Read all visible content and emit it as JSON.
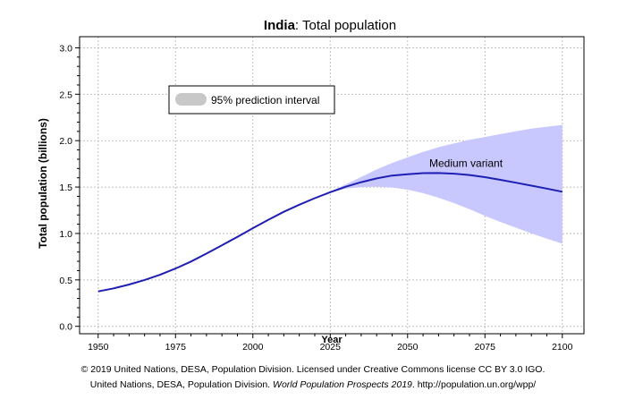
{
  "chart_data": {
    "type": "line",
    "title_bold": "India",
    "title_rest": ": Total population",
    "xlabel": "Year",
    "ylabel": "Total population (billions)",
    "xlim": [
      1944,
      2107
    ],
    "ylim": [
      -0.08,
      3.12
    ],
    "x_ticks": [
      1950,
      1975,
      2000,
      2025,
      2050,
      2075,
      2100
    ],
    "y_ticks": [
      0.0,
      0.5,
      1.0,
      1.5,
      2.0,
      2.5,
      3.0
    ],
    "y_tick_labels": [
      "0.0",
      "0.5",
      "1.0",
      "1.5",
      "2.0",
      "2.5",
      "3.0"
    ],
    "grid": true,
    "legend": {
      "label": "95% prediction interval",
      "placement": "top-left"
    },
    "annotation": {
      "text": "Medium variant",
      "x": 2057,
      "y": 1.72
    },
    "series": [
      {
        "name": "Medium variant",
        "color": "#1f1fb4",
        "x": [
          1950,
          1955,
          1960,
          1965,
          1970,
          1975,
          1980,
          1985,
          1990,
          1995,
          2000,
          2005,
          2010,
          2015,
          2020,
          2025,
          2030,
          2035,
          2040,
          2045,
          2050,
          2055,
          2060,
          2065,
          2070,
          2075,
          2080,
          2085,
          2090,
          2095,
          2100
        ],
        "values": [
          0.376,
          0.409,
          0.45,
          0.499,
          0.555,
          0.623,
          0.698,
          0.784,
          0.873,
          0.964,
          1.057,
          1.148,
          1.234,
          1.31,
          1.38,
          1.445,
          1.504,
          1.553,
          1.593,
          1.624,
          1.639,
          1.65,
          1.651,
          1.644,
          1.63,
          1.607,
          1.578,
          1.547,
          1.515,
          1.483,
          1.45
        ]
      }
    ],
    "interval": {
      "name": "95% prediction interval",
      "color": "#c8c8ff",
      "x": [
        2020,
        2025,
        2030,
        2035,
        2040,
        2045,
        2050,
        2055,
        2060,
        2065,
        2070,
        2075,
        2080,
        2085,
        2090,
        2095,
        2100
      ],
      "lower": [
        1.38,
        1.44,
        1.482,
        1.5,
        1.505,
        1.495,
        1.472,
        1.434,
        1.385,
        1.327,
        1.262,
        1.19,
        1.124,
        1.062,
        1.0,
        0.945,
        0.89
      ],
      "upper": [
        1.38,
        1.45,
        1.53,
        1.61,
        1.69,
        1.76,
        1.82,
        1.88,
        1.93,
        1.97,
        2.01,
        2.04,
        2.07,
        2.1,
        2.13,
        2.15,
        2.17
      ]
    },
    "legend_color": "#c8c8c8"
  },
  "footer": {
    "line1": "© 2019 United Nations, DESA, Population Division. Licensed under Creative Commons license CC BY 3.0 IGO.",
    "line2_prefix": "United Nations, DESA, Population Division. ",
    "line2_italic": "World Population Prospects 2019",
    "line2_suffix": ". http://population.un.org/wpp/"
  }
}
